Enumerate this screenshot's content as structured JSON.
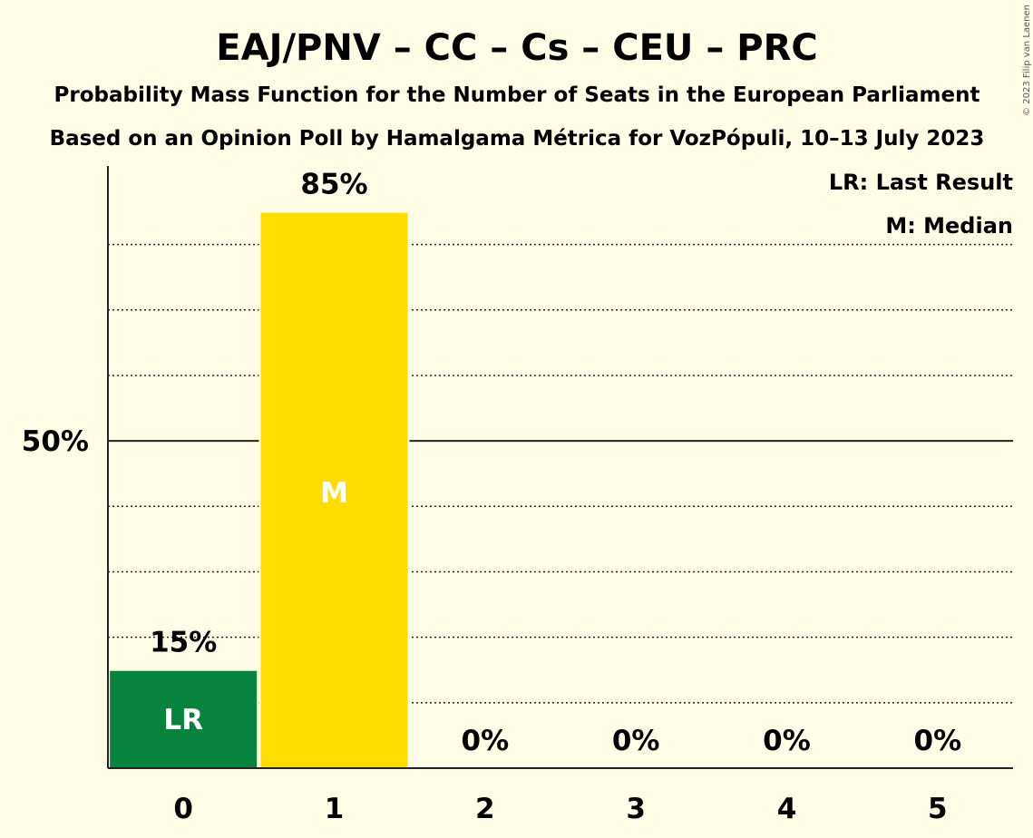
{
  "title": "EAJ/PNV – CC – Cs – CEU – PRC",
  "subtitle1": "Probability Mass Function for the Number of Seats in the European Parliament",
  "subtitle2": "Based on an Opinion Poll by Hamalgama Métrica for VozPópuli, 10–13 July 2023",
  "copyright": "© 2023 Filip van Laenen",
  "legend": {
    "lr": "LR: Last Result",
    "m": "M: Median"
  },
  "chart_data": {
    "type": "bar",
    "categories": [
      "0",
      "1",
      "2",
      "3",
      "4",
      "5"
    ],
    "values": [
      15,
      85,
      0,
      0,
      0,
      0
    ],
    "value_labels": [
      "15%",
      "85%",
      "0%",
      "0%",
      "0%",
      "0%"
    ],
    "in_bar_labels": [
      "LR",
      "M",
      "",
      "",
      "",
      ""
    ],
    "bar_colors": [
      "#06843E",
      "#FFDD00",
      "#06843E",
      "#06843E",
      "#06843E",
      "#06843E"
    ],
    "y_tick_label": "50%",
    "y_tick_value": 50,
    "ylim": [
      0,
      92
    ],
    "dotted_gridlines": [
      10,
      20,
      30,
      40,
      60,
      70,
      80
    ],
    "grid": true,
    "legend_placement": "top-right"
  }
}
